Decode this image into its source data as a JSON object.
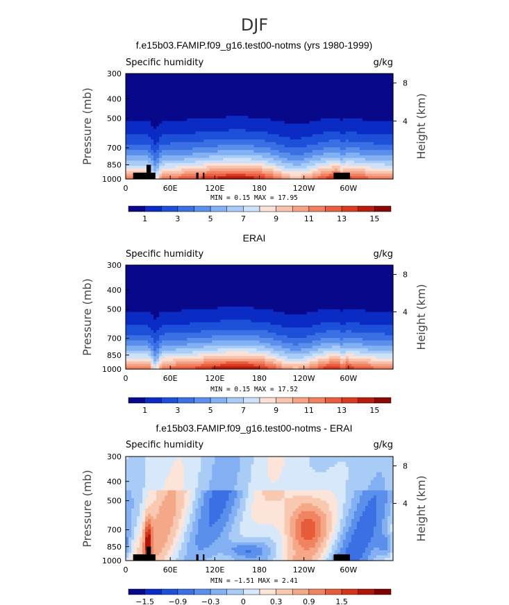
{
  "page": {
    "super_title": "DJF"
  },
  "colormap_seq": [
    "#08088a",
    "#0a2cc4",
    "#1c50d8",
    "#3a70e4",
    "#5a90ec",
    "#82b0f2",
    "#a8ccf6",
    "#cde2fa",
    "#fbe1d5",
    "#f8c3ad",
    "#f5a285",
    "#f0805f",
    "#e85e3e",
    "#d93a20",
    "#b81c0c",
    "#8c0804"
  ],
  "colormap_diff": [
    "#08088a",
    "#0a2cc4",
    "#1c50d8",
    "#3a70e4",
    "#5a90ec",
    "#82b0f2",
    "#a8ccf6",
    "#d6e8fa",
    "#fce4d8",
    "#f9c8b0",
    "#f5a888",
    "#f08460",
    "#e65c38",
    "#d43418",
    "#b01408",
    "#800000"
  ],
  "chart_data": [
    {
      "type": "heatmap",
      "panel_id": "model",
      "title": "f.e15b03.FAMIP.f09_g16.test00-notms (yrs 1980-1999)",
      "left_label": "Specific humidity",
      "right_label": "g/kg",
      "ylabel": "Pressure (mb)",
      "ylabel_right": "Height (km)",
      "x_ticks": [
        "0",
        "60E",
        "120E",
        "180",
        "120W",
        "60W"
      ],
      "x_range": [
        0,
        360
      ],
      "x_tick_values": [
        0,
        60,
        120,
        180,
        240,
        300
      ],
      "y_ticks": [
        "300",
        "400",
        "500",
        "700",
        "850",
        "1000"
      ],
      "y_tick_values": [
        300,
        400,
        500,
        700,
        850,
        1000
      ],
      "y_range_mb": [
        300,
        1000
      ],
      "y_right_ticks": [
        "8",
        "4"
      ],
      "y_right_tick_values_km": [
        8,
        4
      ],
      "stats": "MIN =    0.15  MAX =  17.95",
      "min": 0.15,
      "max": 17.95,
      "colorbar_ticks": [
        "1",
        "3",
        "5",
        "7",
        "9",
        "11",
        "13",
        "15"
      ],
      "colorbar_levels": [
        0,
        1,
        2,
        3,
        4,
        5,
        6,
        7,
        8,
        9,
        10,
        11,
        12,
        13,
        14,
        15
      ],
      "palette": "seq"
    },
    {
      "type": "heatmap",
      "panel_id": "obs",
      "title": "ERAI",
      "left_label": "Specific humidity",
      "right_label": "g/kg",
      "ylabel": "Pressure (mb)",
      "ylabel_right": "Height (km)",
      "x_ticks": [
        "0",
        "60E",
        "120E",
        "180",
        "120W",
        "60W"
      ],
      "x_range": [
        0,
        360
      ],
      "x_tick_values": [
        0,
        60,
        120,
        180,
        240,
        300
      ],
      "y_ticks": [
        "300",
        "400",
        "500",
        "700",
        "850",
        "1000"
      ],
      "y_tick_values": [
        300,
        400,
        500,
        700,
        850,
        1000
      ],
      "y_range_mb": [
        300,
        1000
      ],
      "y_right_ticks": [
        "8",
        "4"
      ],
      "y_right_tick_values_km": [
        8,
        4
      ],
      "stats": "MIN =    0.15  MAX =  17.52",
      "min": 0.15,
      "max": 17.52,
      "colorbar_ticks": [
        "1",
        "3",
        "5",
        "7",
        "9",
        "11",
        "13",
        "15"
      ],
      "colorbar_levels": [
        0,
        1,
        2,
        3,
        4,
        5,
        6,
        7,
        8,
        9,
        10,
        11,
        12,
        13,
        14,
        15
      ],
      "palette": "seq"
    },
    {
      "type": "heatmap",
      "panel_id": "diff",
      "title": "f.e15b03.FAMIP.f09_g16.test00-notms - ERAI",
      "left_label": "Specific humidity",
      "right_label": "g/kg",
      "ylabel": "Pressure (mb)",
      "ylabel_right": "Height (km)",
      "x_ticks": [
        "0",
        "60E",
        "120E",
        "180",
        "120W",
        "60W"
      ],
      "x_range": [
        0,
        360
      ],
      "x_tick_values": [
        0,
        60,
        120,
        180,
        240,
        300
      ],
      "y_ticks": [
        "300",
        "400",
        "500",
        "700",
        "850",
        "1000"
      ],
      "y_tick_values": [
        300,
        400,
        500,
        700,
        850,
        1000
      ],
      "y_range_mb": [
        300,
        1000
      ],
      "y_right_ticks": [
        "8",
        "4"
      ],
      "y_right_tick_values_km": [
        8,
        4
      ],
      "stats": "MIN =   −1.51  MAX =    2.41",
      "min": -1.51,
      "max": 2.41,
      "colorbar_ticks": [
        "−1.5",
        "−0.9",
        "−0.3",
        "0",
        "0.3",
        "0.9",
        "1.5"
      ],
      "colorbar_levels": [
        -2.1,
        -1.8,
        -1.5,
        -1.2,
        -0.9,
        -0.6,
        -0.3,
        0,
        0.3,
        0.6,
        0.9,
        1.2,
        1.5,
        1.8,
        2.1,
        2.4
      ],
      "palette": "diff"
    }
  ]
}
